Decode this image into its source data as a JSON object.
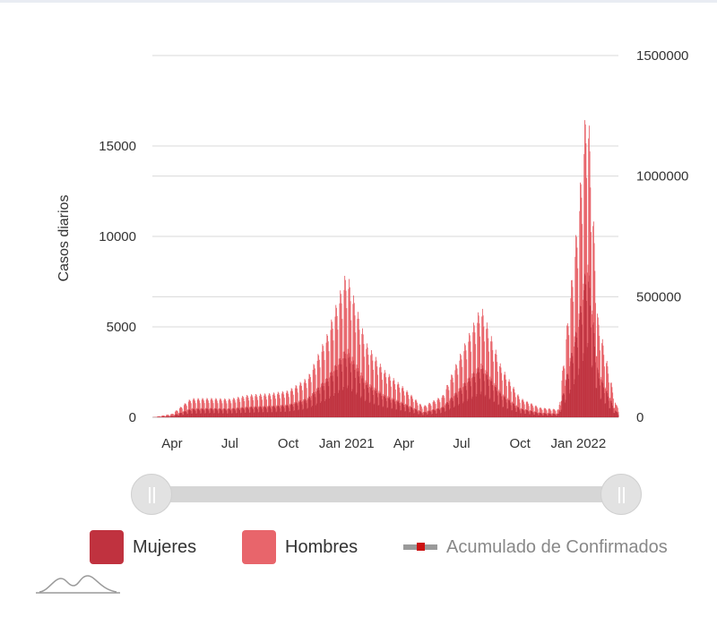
{
  "chart_data": {
    "type": "bar",
    "stacked": true,
    "x_tick_labels": [
      "Apr",
      "Jul",
      "Oct",
      "Jan 2021",
      "Apr",
      "Jul",
      "Oct",
      "Jan 2022"
    ],
    "x_range": [
      "2020-03-01",
      "2022-03-05"
    ],
    "ylabel": "Casos diarios",
    "y_ticks": [
      0,
      5000,
      10000,
      15000
    ],
    "ylim": [
      0,
      20000
    ],
    "y2_ticks": [
      0,
      500000,
      1000000,
      1500000
    ],
    "y2lim": [
      0,
      1500000
    ],
    "grid": true,
    "legend_position": "bottom",
    "series": [
      {
        "name": "Mujeres",
        "color": "#c0323f",
        "points": [
          [
            "2020-03-01",
            0
          ],
          [
            "2020-04-01",
            80
          ],
          [
            "2020-05-01",
            420
          ],
          [
            "2020-06-01",
            450
          ],
          [
            "2020-07-01",
            430
          ],
          [
            "2020-08-01",
            520
          ],
          [
            "2020-09-01",
            560
          ],
          [
            "2020-10-01",
            620
          ],
          [
            "2020-11-01",
            950
          ],
          [
            "2020-12-01",
            1900
          ],
          [
            "2021-01-01",
            3300
          ],
          [
            "2021-02-01",
            1700
          ],
          [
            "2021-03-01",
            1100
          ],
          [
            "2021-04-01",
            700
          ],
          [
            "2021-05-01",
            250
          ],
          [
            "2021-06-01",
            500
          ],
          [
            "2021-07-01",
            1500
          ],
          [
            "2021-08-01",
            2600
          ],
          [
            "2021-09-01",
            1200
          ],
          [
            "2021-10-01",
            450
          ],
          [
            "2021-11-01",
            230
          ],
          [
            "2021-12-01",
            180
          ],
          [
            "2022-01-01",
            4700
          ],
          [
            "2022-01-15",
            7800
          ],
          [
            "2022-02-01",
            2300
          ],
          [
            "2022-03-01",
            300
          ]
        ]
      },
      {
        "name": "Hombres",
        "color": "#e8656b",
        "points": [
          [
            "2020-03-01",
            0
          ],
          [
            "2020-04-01",
            90
          ],
          [
            "2020-05-01",
            500
          ],
          [
            "2020-06-01",
            480
          ],
          [
            "2020-07-01",
            470
          ],
          [
            "2020-08-01",
            580
          ],
          [
            "2020-09-01",
            600
          ],
          [
            "2020-10-01",
            680
          ],
          [
            "2020-11-01",
            1000
          ],
          [
            "2020-12-01",
            2100
          ],
          [
            "2021-01-01",
            3800
          ],
          [
            "2021-02-01",
            1900
          ],
          [
            "2021-03-01",
            1200
          ],
          [
            "2021-04-01",
            750
          ],
          [
            "2021-05-01",
            280
          ],
          [
            "2021-06-01",
            550
          ],
          [
            "2021-07-01",
            1700
          ],
          [
            "2021-08-01",
            2800
          ],
          [
            "2021-09-01",
            1300
          ],
          [
            "2021-10-01",
            500
          ],
          [
            "2021-11-01",
            250
          ],
          [
            "2021-12-01",
            200
          ],
          [
            "2022-01-01",
            5300
          ],
          [
            "2022-01-15",
            8200
          ],
          [
            "2022-02-01",
            2500
          ],
          [
            "2022-03-01",
            320
          ]
        ]
      },
      {
        "name": "Acumulado de Confirmados",
        "color": "#cc1111",
        "visible": false,
        "axis": "right"
      }
    ]
  },
  "legend": {
    "mujeres": "Mujeres",
    "hombres": "Hombres",
    "acumulado": "Acumulado de Confirmados"
  },
  "colors": {
    "mujeres": "#c0323f",
    "hombres": "#e8656b",
    "grid": "#d9d9d9",
    "slider": "#d6d6d6"
  }
}
